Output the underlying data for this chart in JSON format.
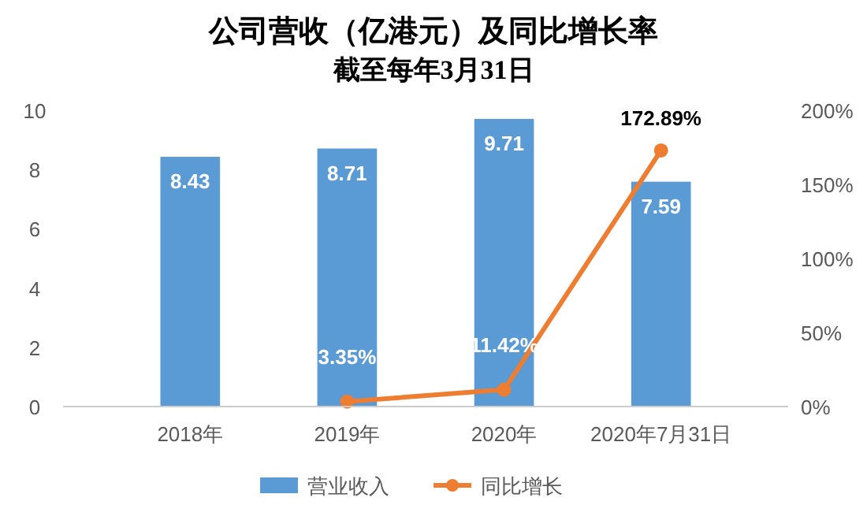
{
  "chart_data": {
    "type": "bar",
    "title": "公司营收（亿港元）及同比增长率",
    "subtitle": "截至每年3月31日",
    "categories": [
      "2018年",
      "2019年",
      "2020年",
      "2020年7月31日"
    ],
    "series": [
      {
        "name": "营业收入",
        "color": "#5b9bd5",
        "values": [
          8.43,
          8.71,
          9.71,
          7.59
        ],
        "value_labels": [
          "8.43",
          "8.71",
          "9.71",
          "7.59"
        ]
      },
      {
        "name": "同比增长",
        "type": "line",
        "axis": "y2",
        "color": "#ed7d31",
        "marker": "circle",
        "values": [
          null,
          3.35,
          11.42,
          172.89
        ],
        "value_labels": [
          null,
          "3.35%",
          "11.42%",
          "172.89%"
        ]
      }
    ],
    "ylim": [
      0,
      10
    ],
    "yticks": [
      0,
      2,
      4,
      6,
      8,
      10
    ],
    "y2lim": [
      0,
      200
    ],
    "y2ticks": [
      {
        "value": 0,
        "label": "0%"
      },
      {
        "value": 50,
        "label": "50%"
      },
      {
        "value": 100,
        "label": "100%"
      },
      {
        "value": 150,
        "label": "150%"
      },
      {
        "value": 200,
        "label": "200%"
      }
    ],
    "legend": "bottom",
    "grid": false
  }
}
